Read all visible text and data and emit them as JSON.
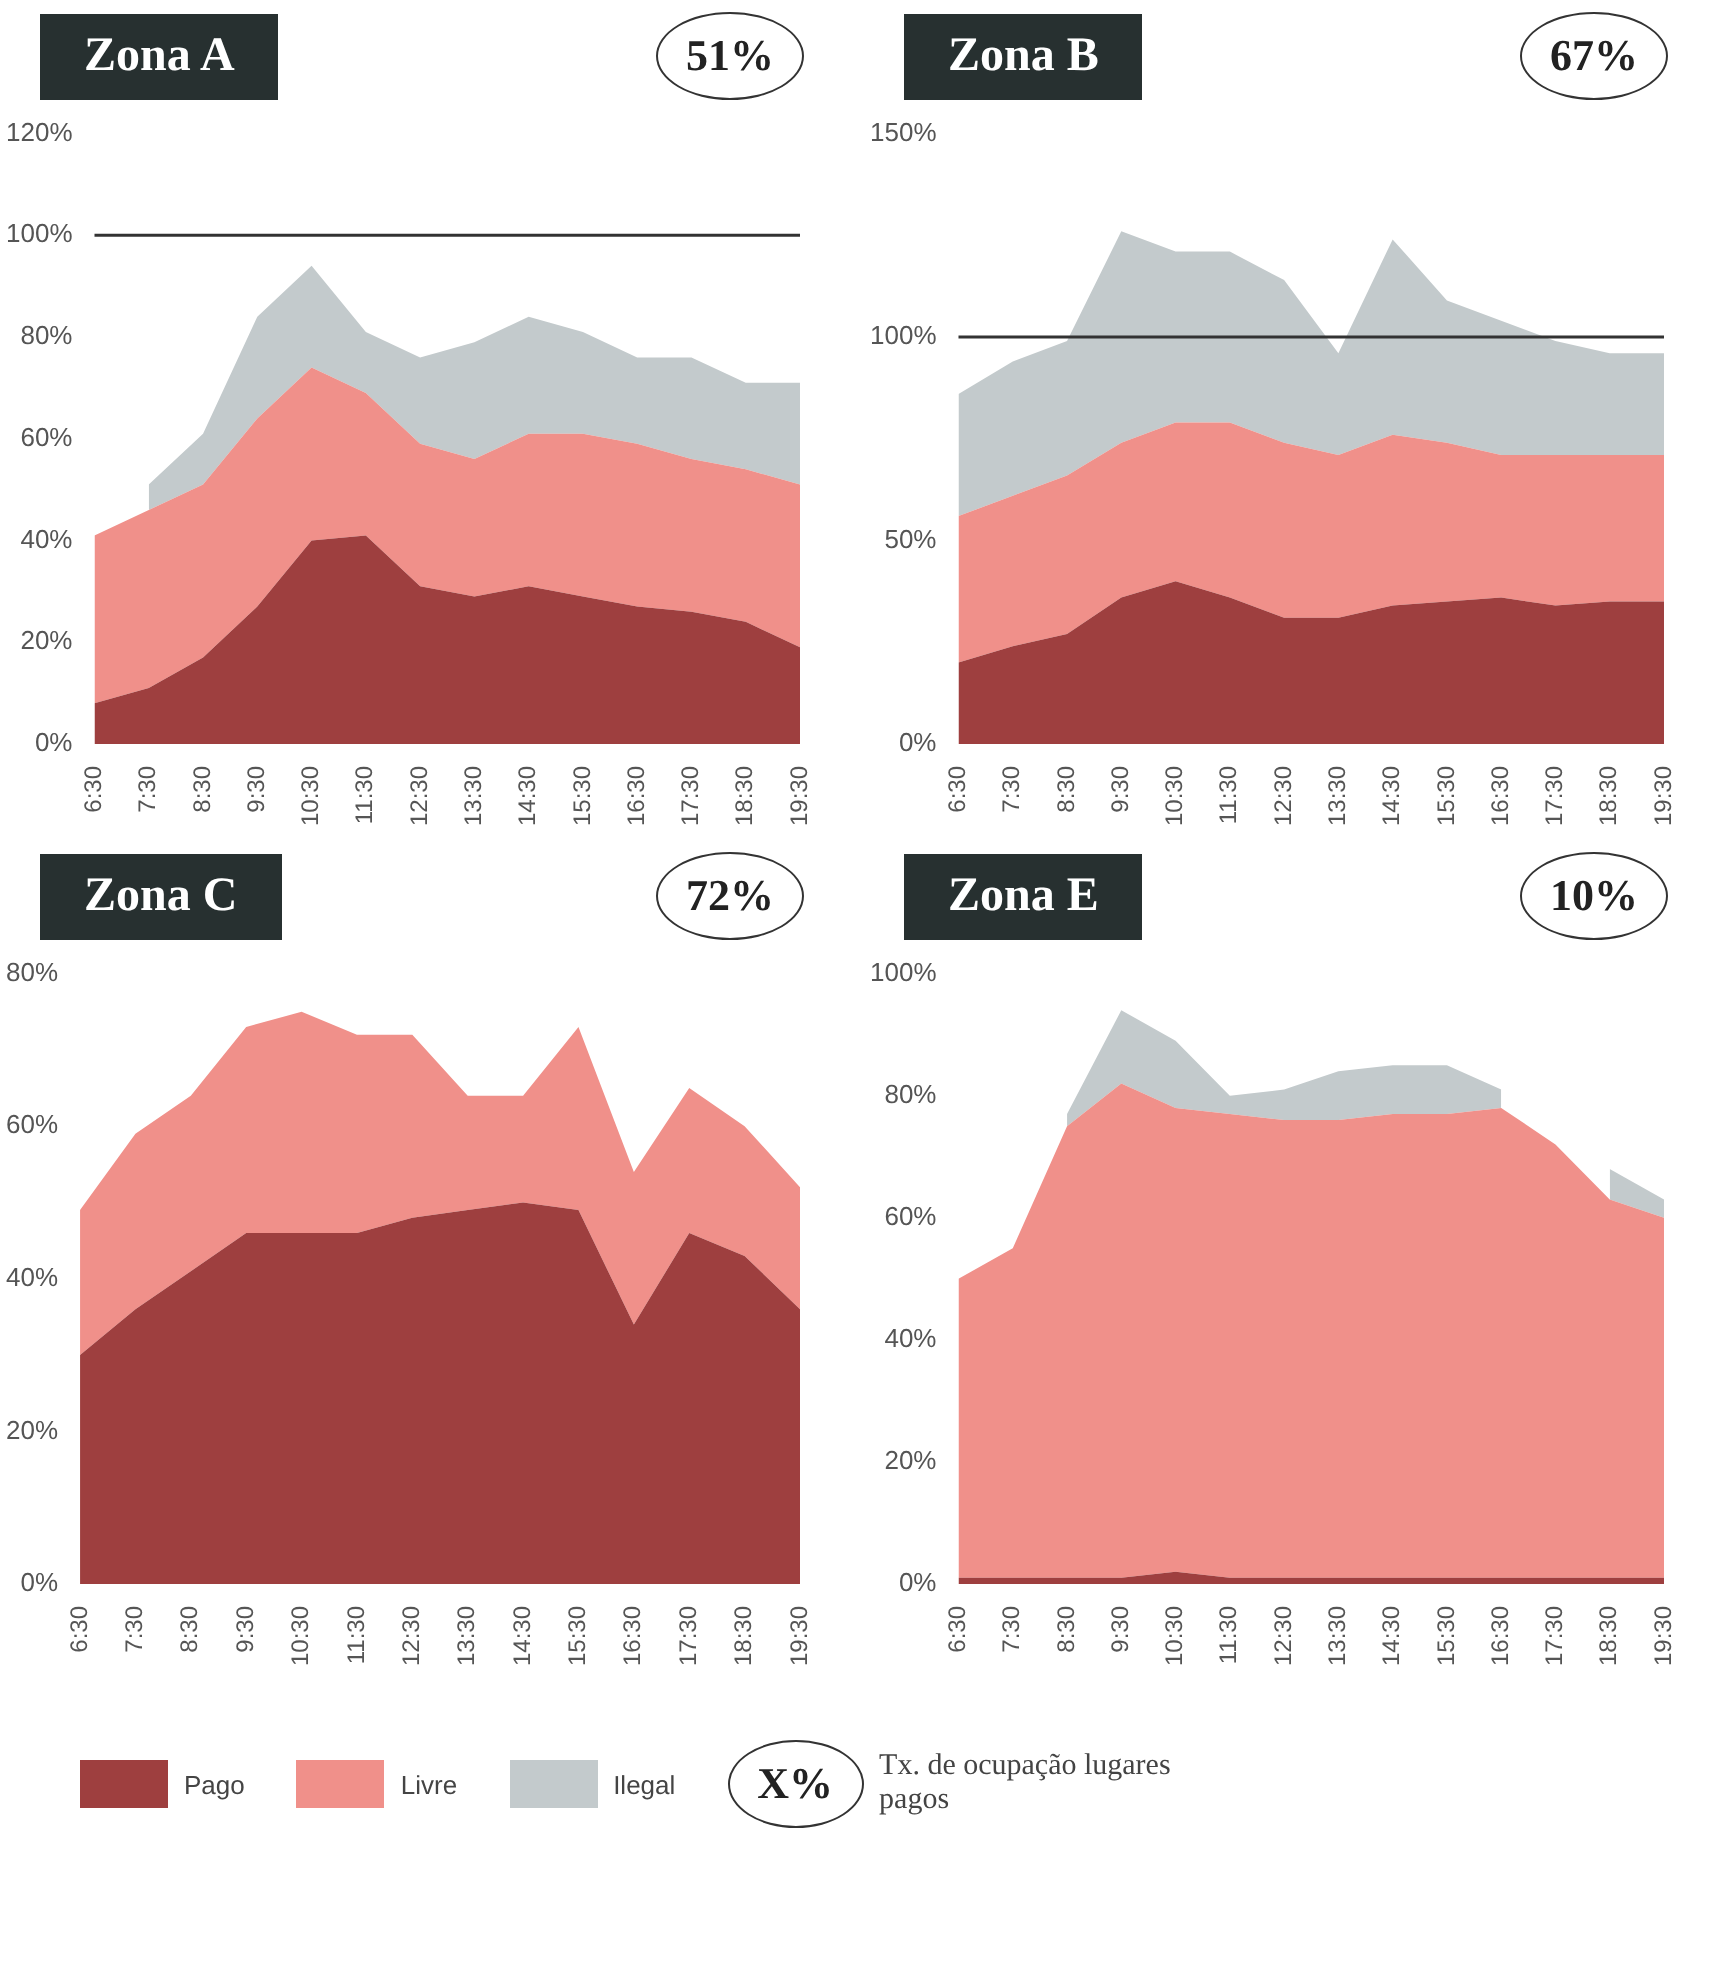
{
  "chart_data": [
    {
      "type": "area",
      "title": "Zona A",
      "stacked": true,
      "legend": "bottom",
      "grid": false,
      "x": [
        6.5,
        7.5,
        8.5,
        9.5,
        10.5,
        11.5,
        12.5,
        13.5,
        14.5,
        15.5,
        16.5,
        17.5,
        18.5,
        19.5
      ],
      "xlim": [
        6.5,
        19.5
      ],
      "xticks": [
        {
          "value": 6.5,
          "label": "6:30"
        },
        {
          "value": 7.5,
          "label": "7:30"
        },
        {
          "value": 8.5,
          "label": "8:30"
        },
        {
          "value": 9.5,
          "label": "9:30"
        },
        {
          "value": 10.5,
          "label": "10:30"
        },
        {
          "value": 11.5,
          "label": "11:30"
        },
        {
          "value": 12.5,
          "label": "12:30"
        },
        {
          "value": 13.5,
          "label": "13:30"
        },
        {
          "value": 14.5,
          "label": "14:30"
        },
        {
          "value": 15.5,
          "label": "15:30"
        },
        {
          "value": 16.5,
          "label": "16:30"
        },
        {
          "value": 17.5,
          "label": "17:30"
        },
        {
          "value": 18.5,
          "label": "18:30"
        },
        {
          "value": 19.5,
          "label": "19:30"
        }
      ],
      "ylim": [
        0,
        120
      ],
      "yticks": [
        {
          "value": 0,
          "label": "0%"
        },
        {
          "value": 20,
          "label": "20%"
        },
        {
          "value": 40,
          "label": "40%"
        },
        {
          "value": 60,
          "label": "60%"
        },
        {
          "value": 80,
          "label": "80%"
        },
        {
          "value": 100,
          "label": "100%"
        },
        {
          "value": 120,
          "label": "120%"
        }
      ],
      "series": [
        {
          "name": "Pago",
          "color": "#9e3f3f",
          "values": [
            8,
            11,
            17,
            27,
            40,
            41,
            31,
            29,
            31,
            29,
            27,
            26,
            24,
            19
          ]
        },
        {
          "name": "Livre",
          "color": "#f0908a",
          "values": [
            33,
            35,
            34,
            37,
            34,
            28,
            28,
            27,
            30,
            32,
            32,
            30,
            30,
            32
          ]
        },
        {
          "name": "Ilegal",
          "color": "#c3cacc",
          "values": [
            null,
            5,
            10,
            20,
            20,
            12,
            17,
            23,
            23,
            20,
            17,
            20,
            17,
            20
          ]
        }
      ],
      "ref_lines": [
        {
          "axis": "y",
          "value": 100,
          "color": "#333333"
        }
      ],
      "annotations": [
        "51%",
        "X%",
        "Tx. de ocupação lugares pagos"
      ]
    },
    {
      "type": "area",
      "title": "Zona B",
      "stacked": true,
      "grid": false,
      "x": [
        6.5,
        7.5,
        8.5,
        9.5,
        10.5,
        11.5,
        12.5,
        13.5,
        14.5,
        15.5,
        16.5,
        17.5,
        18.5,
        19.5
      ],
      "xlim": [
        6.5,
        19.5
      ],
      "xticks": [
        {
          "value": 6.5,
          "label": "6:30"
        },
        {
          "value": 7.5,
          "label": "7:30"
        },
        {
          "value": 8.5,
          "label": "8:30"
        },
        {
          "value": 9.5,
          "label": "9:30"
        },
        {
          "value": 10.5,
          "label": "10:30"
        },
        {
          "value": 11.5,
          "label": "11:30"
        },
        {
          "value": 12.5,
          "label": "12:30"
        },
        {
          "value": 13.5,
          "label": "13:30"
        },
        {
          "value": 14.5,
          "label": "14:30"
        },
        {
          "value": 15.5,
          "label": "15:30"
        },
        {
          "value": 16.5,
          "label": "16:30"
        },
        {
          "value": 17.5,
          "label": "17:30"
        },
        {
          "value": 18.5,
          "label": "18:30"
        },
        {
          "value": 19.5,
          "label": "19:30"
        }
      ],
      "ylim": [
        0,
        150
      ],
      "yticks": [
        {
          "value": 0,
          "label": "0%"
        },
        {
          "value": 50,
          "label": "50%"
        },
        {
          "value": 100,
          "label": "100%"
        },
        {
          "value": 150,
          "label": "150%"
        }
      ],
      "series": [
        {
          "color": "#9e3f3f",
          "values": [
            20,
            24,
            27,
            36,
            40,
            36,
            31,
            31,
            34,
            35,
            36,
            34,
            35,
            35
          ]
        },
        {
          "color": "#f0908a",
          "values": [
            36,
            37,
            39,
            38,
            39,
            43,
            43,
            40,
            42,
            39,
            35,
            37,
            36,
            36
          ]
        },
        {
          "color": "#c3cacc",
          "values": [
            30,
            33,
            33,
            52,
            42,
            42,
            40,
            25,
            48,
            35,
            33,
            28,
            25,
            25
          ]
        }
      ],
      "ref_lines": [
        {
          "axis": "y",
          "value": 100,
          "color": "#333333"
        }
      ],
      "annotations": [
        "67%"
      ]
    },
    {
      "type": "area",
      "title": "Zona C",
      "stacked": true,
      "grid": false,
      "x": [
        6.5,
        7.5,
        8.5,
        9.5,
        10.5,
        11.5,
        12.5,
        13.5,
        14.5,
        15.5,
        16.5,
        17.5,
        18.5,
        19.5
      ],
      "xlim": [
        6.5,
        19.5
      ],
      "xticks": [
        {
          "value": 6.5,
          "label": "6:30"
        },
        {
          "value": 7.5,
          "label": "7:30"
        },
        {
          "value": 8.5,
          "label": "8:30"
        },
        {
          "value": 9.5,
          "label": "9:30"
        },
        {
          "value": 10.5,
          "label": "10:30"
        },
        {
          "value": 11.5,
          "label": "11:30"
        },
        {
          "value": 12.5,
          "label": "12:30"
        },
        {
          "value": 13.5,
          "label": "13:30"
        },
        {
          "value": 14.5,
          "label": "14:30"
        },
        {
          "value": 15.5,
          "label": "15:30"
        },
        {
          "value": 16.5,
          "label": "16:30"
        },
        {
          "value": 17.5,
          "label": "17:30"
        },
        {
          "value": 18.5,
          "label": "18:30"
        },
        {
          "value": 19.5,
          "label": "19:30"
        }
      ],
      "ylim": [
        0,
        80
      ],
      "yticks": [
        {
          "value": 0,
          "label": "0%"
        },
        {
          "value": 20,
          "label": "20%"
        },
        {
          "value": 40,
          "label": "40%"
        },
        {
          "value": 60,
          "label": "60%"
        },
        {
          "value": 80,
          "label": "80%"
        }
      ],
      "series": [
        {
          "color": "#9e3f3f",
          "values": [
            30,
            36,
            41,
            46,
            46,
            46,
            48,
            49,
            50,
            49,
            34,
            46,
            43,
            36
          ]
        },
        {
          "color": "#f0908a",
          "values": [
            19,
            23,
            23,
            27,
            29,
            26,
            24,
            15,
            14,
            24,
            20,
            19,
            17,
            16
          ]
        }
      ],
      "annotations": [
        "72%"
      ]
    },
    {
      "type": "area",
      "title": "Zona E",
      "stacked": true,
      "grid": false,
      "x": [
        6.5,
        7.5,
        8.5,
        9.5,
        10.5,
        11.5,
        12.5,
        13.5,
        14.5,
        15.5,
        16.5,
        17.5,
        18.5,
        19.5
      ],
      "xlim": [
        6.5,
        19.5
      ],
      "xticks": [
        {
          "value": 6.5,
          "label": "6:30"
        },
        {
          "value": 7.5,
          "label": "7:30"
        },
        {
          "value": 8.5,
          "label": "8:30"
        },
        {
          "value": 9.5,
          "label": "9:30"
        },
        {
          "value": 10.5,
          "label": "10:30"
        },
        {
          "value": 11.5,
          "label": "11:30"
        },
        {
          "value": 12.5,
          "label": "12:30"
        },
        {
          "value": 13.5,
          "label": "13:30"
        },
        {
          "value": 14.5,
          "label": "14:30"
        },
        {
          "value": 15.5,
          "label": "15:30"
        },
        {
          "value": 16.5,
          "label": "16:30"
        },
        {
          "value": 17.5,
          "label": "17:30"
        },
        {
          "value": 18.5,
          "label": "18:30"
        },
        {
          "value": 19.5,
          "label": "19:30"
        }
      ],
      "ylim": [
        0,
        100
      ],
      "yticks": [
        {
          "value": 0,
          "label": "0%"
        },
        {
          "value": 20,
          "label": "20%"
        },
        {
          "value": 40,
          "label": "40%"
        },
        {
          "value": 60,
          "label": "60%"
        },
        {
          "value": 80,
          "label": "80%"
        },
        {
          "value": 100,
          "label": "100%"
        }
      ],
      "series": [
        {
          "color": "#9e3f3f",
          "values": [
            1,
            1,
            1,
            1,
            2,
            1,
            1,
            1,
            1,
            1,
            1,
            1,
            1,
            1
          ]
        },
        {
          "color": "#f0908a",
          "values": [
            49,
            54,
            74,
            81,
            76,
            76,
            75,
            75,
            76,
            76,
            77,
            71,
            62,
            59
          ]
        },
        {
          "color": "#c3cacc",
          "values": [
            null,
            null,
            2,
            12,
            11,
            3,
            5,
            8,
            8,
            8,
            3,
            null,
            5,
            3
          ]
        }
      ],
      "annotations": [
        "10%"
      ]
    }
  ]
}
